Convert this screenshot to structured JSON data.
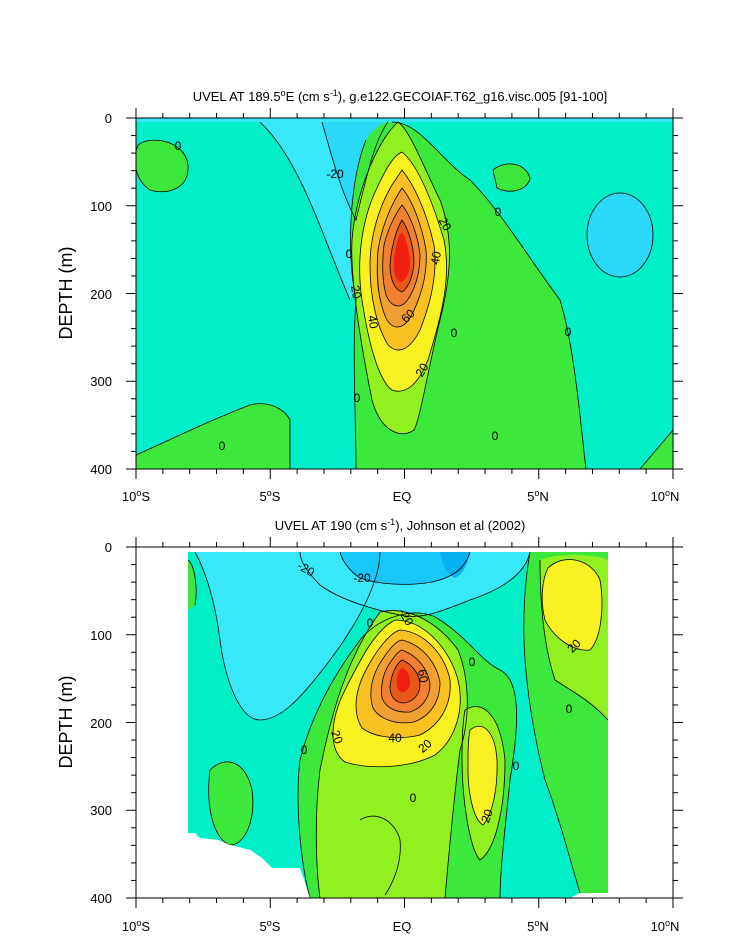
{
  "chart_data": [
    {
      "type": "contour",
      "title": "UVEL AT 189.5°E (cm s⁻¹), g.e122.GECOIAF.T62_g16.visc.005 [91-100]",
      "ylabel": "DEPTH (m)",
      "x_ticks": [
        "10°S",
        "5°S",
        "EQ",
        "5°N",
        "10°N"
      ],
      "y_ticks": [
        "0",
        "100",
        "200",
        "300",
        "400"
      ],
      "xlim": [
        -10,
        10
      ],
      "ylim": [
        400,
        0
      ],
      "contour_interval": 10,
      "core_max": {
        "lat": 0,
        "depth": 155,
        "value": 80
      },
      "contour_labels": [
        "0",
        "-20",
        "0",
        "20",
        "40",
        "60",
        "20",
        "40",
        "20",
        "0",
        "0",
        "0",
        "0",
        "0",
        "0"
      ]
    },
    {
      "type": "contour",
      "title": "UVEL AT 190 (cm s⁻¹), Johnson et al (2002)",
      "ylabel": "DEPTH (m)",
      "x_ticks": [
        "10°S",
        "5°S",
        "EQ",
        "5°N",
        "10°N"
      ],
      "y_ticks": [
        "0",
        "100",
        "200",
        "300",
        "400"
      ],
      "xlim": [
        -10,
        10
      ],
      "ylim": [
        400,
        0
      ],
      "contour_interval": 10,
      "core_max": {
        "lat": 0,
        "depth": 148,
        "value": 80
      },
      "contour_labels": [
        "-20",
        "-20",
        "-20",
        "0",
        "60",
        "20",
        "40",
        "20",
        "0",
        "0",
        "0",
        "20",
        "20",
        "0"
      ]
    }
  ]
}
